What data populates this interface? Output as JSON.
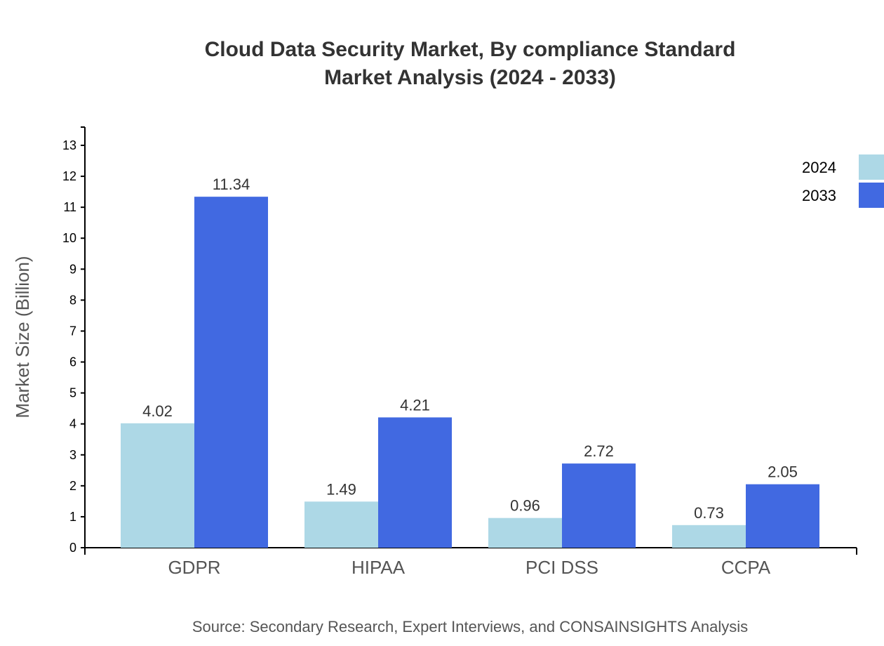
{
  "chart_data": {
    "type": "bar",
    "title": "Cloud Data Security Market, By compliance Standard",
    "subtitle": "Market Analysis (2024 - 2033)",
    "xlabel": "",
    "ylabel": "Market Size (Billion)",
    "categories": [
      "GDPR",
      "HIPAA",
      "PCI DSS",
      "CCPA"
    ],
    "series": [
      {
        "name": "2024",
        "values": [
          4.02,
          1.49,
          0.96,
          0.73
        ],
        "color": "#add8e6"
      },
      {
        "name": "2033",
        "values": [
          11.34,
          4.21,
          2.72,
          2.05
        ],
        "color": "#4169e1"
      }
    ],
    "ylim": [
      0,
      13.6
    ],
    "yticks": [
      0,
      1,
      2,
      3,
      4,
      5,
      6,
      7,
      8,
      9,
      10,
      11,
      12,
      13
    ],
    "grid": false,
    "legend_position": "top-right",
    "source": "Source: Secondary Research, Expert Interviews, and CONSAINSIGHTS Analysis"
  }
}
